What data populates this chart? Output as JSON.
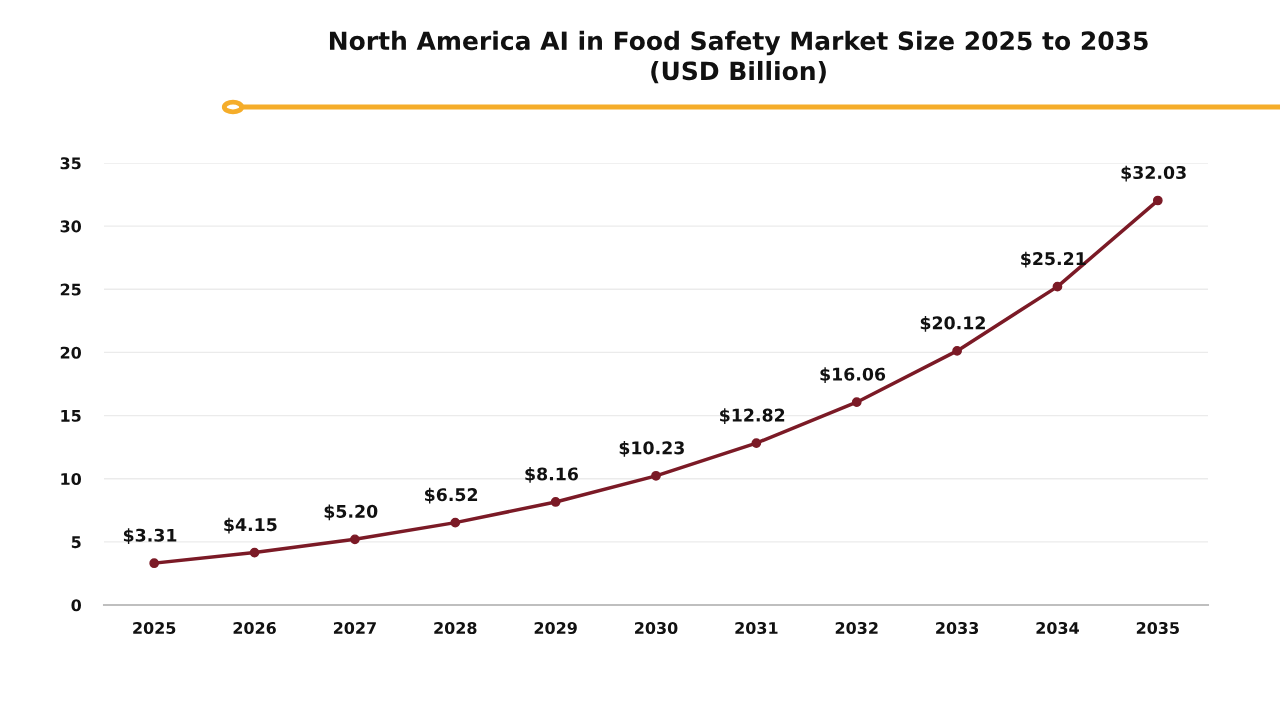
{
  "chart_data": {
    "type": "line",
    "title": "North America AI in Food Safety Market Size 2025 to 2035\n(USD Billion)",
    "categories": [
      "2025",
      "2026",
      "2027",
      "2028",
      "2029",
      "2030",
      "2031",
      "2032",
      "2033",
      "2034",
      "2035"
    ],
    "values": [
      3.31,
      4.15,
      5.2,
      6.52,
      8.16,
      10.23,
      12.82,
      16.06,
      20.12,
      25.21,
      32.03
    ],
    "value_labels": [
      "$3.31",
      "$4.15",
      "$5.20",
      "$6.52",
      "$8.16",
      "$10.23",
      "$12.82",
      "$16.06",
      "$20.12",
      "$25.21",
      "$32.03"
    ],
    "color": "#7b1a26",
    "ylim": [
      0,
      35
    ],
    "yticks": [
      0,
      5,
      10,
      15,
      20,
      25,
      30,
      35
    ],
    "grid": "y",
    "marker": "circle",
    "line_style": "solid"
  }
}
